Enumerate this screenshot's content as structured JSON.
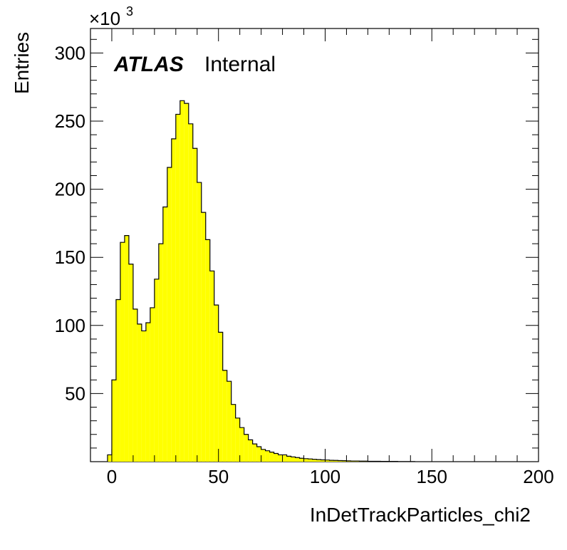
{
  "chart_data": {
    "type": "bar",
    "style": "histogram",
    "fill_color": "#ffff00",
    "line_color": "#000000",
    "xlabel": "InDetTrackParticles_chi2",
    "ylabel": "Entries",
    "y_multiplier": "×10",
    "y_multiplier_exp": "3",
    "xlim": [
      -10,
      200
    ],
    "ylim": [
      0,
      318
    ],
    "x_ticks": [
      0,
      50,
      100,
      150,
      200
    ],
    "y_ticks": [
      50,
      100,
      150,
      200,
      250,
      300
    ],
    "x_tick_labels": [
      "0",
      "50",
      "100",
      "150",
      "200"
    ],
    "y_tick_labels": [
      "50",
      "100",
      "150",
      "200",
      "250",
      "300"
    ],
    "bin_width": 2,
    "bin_start": -2,
    "values": [
      5,
      60,
      119,
      161,
      166,
      145,
      112,
      101,
      96,
      102,
      113,
      134,
      160,
      187,
      216,
      237,
      255,
      265,
      263,
      248,
      230,
      205,
      183,
      163,
      140,
      115,
      95,
      67,
      59,
      42,
      32,
      25,
      20,
      16,
      13,
      11,
      9,
      8,
      7,
      6,
      5,
      5,
      4,
      3.5,
      3,
      2.5,
      2.2,
      2,
      1.7,
      1.5,
      1.3,
      1.2,
      1.0,
      0.9,
      0.8,
      0.7,
      0.6,
      0.5,
      0.5,
      0.4,
      0.4,
      0.3,
      0.3,
      0.3,
      0.2,
      0.2,
      0.2,
      0.2,
      0.1,
      0.1,
      0.1,
      0.1
    ],
    "grid": false,
    "annotation": {
      "bold": "ATLAS",
      "normal": "Internal"
    }
  }
}
